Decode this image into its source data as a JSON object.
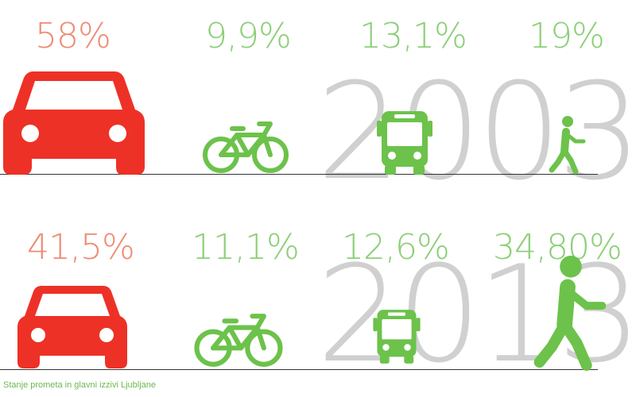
{
  "rows": [
    {
      "year": "2003",
      "car": "58%",
      "bike": "9,9%",
      "bus": "13,1%",
      "walk": "19%"
    },
    {
      "year": "2013",
      "car": "41,5%",
      "bike": "11,1%",
      "bus": "12,6%",
      "walk": "34,80%"
    }
  ],
  "caption": "Stanje prometa in glavni izzivi Ljubljane",
  "colors": {
    "car": "#ee3126",
    "car_text": "#ee8b74",
    "green": "#6cc24a",
    "green_text": "#8ccf78",
    "year": "#d0d0d0"
  },
  "icons": [
    "car-icon",
    "bicycle-icon",
    "bus-icon",
    "pedestrian-icon"
  ]
}
